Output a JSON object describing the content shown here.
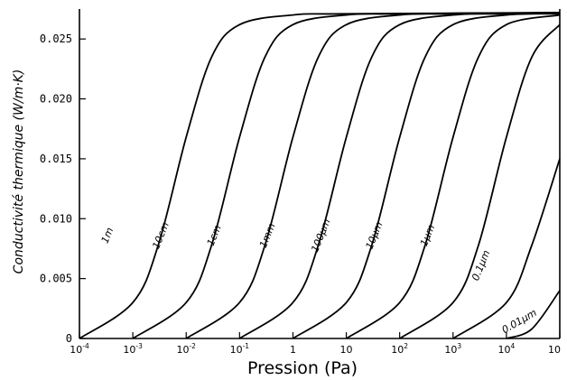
{
  "chart_data": {
    "type": "line",
    "title": "",
    "xlabel": "Pression (Pa)",
    "ylabel": "Conductivité thermique (W/m·K)",
    "x_scale": "log",
    "xlim": [
      0.0001,
      100000
    ],
    "ylim": [
      0,
      0.0275
    ],
    "grid": false,
    "x_ticks": [
      {
        "value": 0.0001,
        "base": "10",
        "exp": "-4"
      },
      {
        "value": 0.001,
        "base": "10",
        "exp": "-3"
      },
      {
        "value": 0.01,
        "base": "10",
        "exp": "-2"
      },
      {
        "value": 0.1,
        "base": "10",
        "exp": "-1"
      },
      {
        "value": 1,
        "base": "1",
        "exp": ""
      },
      {
        "value": 10,
        "base": "10",
        "exp": ""
      },
      {
        "value": 100,
        "base": "10",
        "exp": "2"
      },
      {
        "value": 1000,
        "base": "10",
        "exp": "3"
      },
      {
        "value": 10000,
        "base": "10",
        "exp": "4"
      },
      {
        "value": 100000,
        "base": "10",
        "exp": ""
      }
    ],
    "y_ticks": [
      {
        "value": 0,
        "label": "0"
      },
      {
        "value": 0.005,
        "label": "0.005"
      },
      {
        "value": 0.01,
        "label": "0.010"
      },
      {
        "value": 0.015,
        "label": "0.015"
      },
      {
        "value": 0.02,
        "label": "0.020"
      },
      {
        "value": 0.025,
        "label": "0.025"
      }
    ],
    "series": [
      {
        "name": "1m",
        "x": [
          0.0001,
          0.001,
          0.003,
          0.01,
          0.03,
          0.1,
          1,
          10,
          100000
        ],
        "y": [
          0.0,
          0.003,
          0.0078,
          0.0168,
          0.0235,
          0.0262,
          0.027,
          0.0271,
          0.0272
        ]
      },
      {
        "name": "10cm",
        "x": [
          0.001,
          0.01,
          0.03,
          0.1,
          0.3,
          1,
          10,
          100,
          100000
        ],
        "y": [
          0.0,
          0.003,
          0.0078,
          0.0168,
          0.0235,
          0.0262,
          0.027,
          0.0271,
          0.0272
        ]
      },
      {
        "name": "1cm",
        "x": [
          0.01,
          0.1,
          0.3,
          1,
          3,
          10,
          100,
          1000,
          100000
        ],
        "y": [
          0.0,
          0.003,
          0.0078,
          0.0168,
          0.0235,
          0.0262,
          0.027,
          0.0271,
          0.0272
        ]
      },
      {
        "name": "1mm",
        "x": [
          0.1,
          1,
          3,
          10,
          30,
          100,
          1000,
          10000,
          100000
        ],
        "y": [
          0.0,
          0.003,
          0.0078,
          0.0168,
          0.0235,
          0.0262,
          0.027,
          0.0271,
          0.0272
        ]
      },
      {
        "name": "100µm",
        "x": [
          1,
          10,
          30,
          100,
          300,
          1000,
          10000,
          100000
        ],
        "y": [
          0.0,
          0.003,
          0.0078,
          0.0168,
          0.0235,
          0.0262,
          0.027,
          0.0271
        ]
      },
      {
        "name": "10µm",
        "x": [
          10,
          100,
          300,
          1000,
          3000,
          10000,
          100000
        ],
        "y": [
          0.0,
          0.003,
          0.0078,
          0.0168,
          0.0235,
          0.0262,
          0.027
        ]
      },
      {
        "name": "1µm",
        "x": [
          100,
          1000,
          3000,
          10000,
          30000,
          100000
        ],
        "y": [
          0.0,
          0.003,
          0.0078,
          0.0168,
          0.0235,
          0.0262
        ]
      },
      {
        "name": "0.1µm",
        "x": [
          1000,
          10000,
          30000,
          100000
        ],
        "y": [
          0.0,
          0.003,
          0.0078,
          0.015
        ]
      },
      {
        "name": "0.01µm",
        "x": [
          10000,
          30000,
          100000
        ],
        "y": [
          0.0,
          0.0008,
          0.004
        ]
      }
    ]
  }
}
